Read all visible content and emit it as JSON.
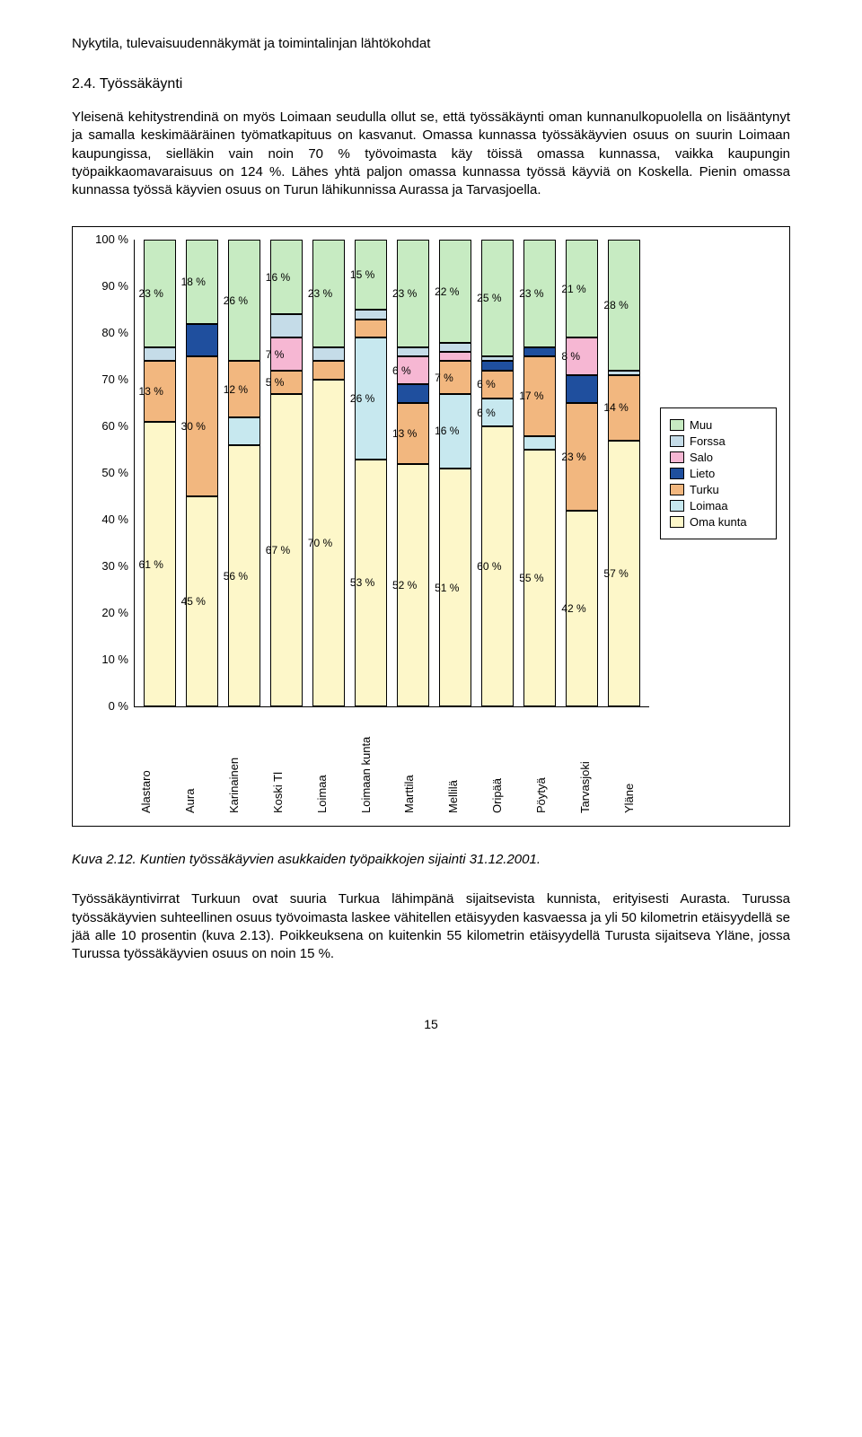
{
  "header": "Nykytila, tulevaisuudennäkymät ja toimintalinjan lähtökohdat",
  "section_number": "2.4. Työssäkäynti",
  "paragraph1": "Yleisenä kehitystrendinä on myös Loimaan seudulla ollut se, että työssäkäynti oman kunnanulkopuolella on lisääntynyt ja samalla keskimääräinen työmatkapituus on kasvanut. Omassa kunnassa työssäkäyvien osuus on suurin Loimaan kaupungissa, sielläkin vain noin 70 % työvoimasta käy töissä omassa kunnassa, vaikka kaupungin työpaikkaomavaraisuus on 124 %. Lähes yhtä paljon omassa kunnassa työssä käyviä on Koskella. Pienin omassa kunnassa työssä käyvien osuus on Turun lähikunnissa Aurassa ja Tarvasjoella.",
  "caption": "Kuva 2.12.  Kuntien työssäkäyvien asukkaiden työpaikkojen sijainti 31.12.2001.",
  "paragraph2": "Työssäkäyntivirrat Turkuun ovat suuria Turkua lähimpänä sijaitsevista kunnista, erityisesti Aurasta. Turussa työssäkäyvien suhteellinen osuus työvoimasta laskee vähitellen etäisyyden kasvaessa ja yli 50 kilometrin etäisyydellä se jää alle 10 prosentin (kuva 2.13). Poikkeuksena on kuitenkin 55 kilometrin etäisyydellä Turusta sijaitseva Yläne, jossa Turussa työssäkäyvien osuus on noin 15 %.",
  "page_number": "15",
  "chart": {
    "type": "stacked-bar",
    "ylim": [
      0,
      100
    ],
    "ytick_step": 10,
    "y_ticks": [
      "0 %",
      "10 %",
      "20 %",
      "30 %",
      "40 %",
      "50 %",
      "60 %",
      "70 %",
      "80 %",
      "90 %",
      "100 %"
    ],
    "legend": [
      {
        "key": "muu",
        "label": "Muu",
        "color": "#c7ebc2"
      },
      {
        "key": "forssa",
        "label": "Forssa",
        "color": "#c5dce8"
      },
      {
        "key": "salo",
        "label": "Salo",
        "color": "#f6b7d3"
      },
      {
        "key": "lieto",
        "label": "Lieto",
        "color": "#1f4f9e"
      },
      {
        "key": "turku",
        "label": "Turku",
        "color": "#f2b77f"
      },
      {
        "key": "loimaa",
        "label": "Loimaa",
        "color": "#c7e8ef"
      },
      {
        "key": "oma",
        "label": "Oma kunta",
        "color": "#fdf7c9"
      }
    ],
    "categories": [
      "Alastaro",
      "Aura",
      "Karinainen",
      "Koski Tl",
      "Loimaa",
      "Loimaan kunta",
      "Marttila",
      "Mellilä",
      "Oripää",
      "Pöytyä",
      "Tarvasjoki",
      "Yläne"
    ],
    "series": [
      {
        "name": "Alastaro",
        "stack": [
          {
            "key": "oma",
            "value": 61,
            "label": "61 %"
          },
          {
            "key": "loimaa",
            "value": 0
          },
          {
            "key": "turku",
            "value": 13,
            "label": "13 %"
          },
          {
            "key": "lieto",
            "value": 0
          },
          {
            "key": "salo",
            "value": 0
          },
          {
            "key": "forssa",
            "value": 3
          },
          {
            "key": "muu",
            "value": 23,
            "label": "23 %"
          }
        ]
      },
      {
        "name": "Aura",
        "stack": [
          {
            "key": "oma",
            "value": 45,
            "label": "45 %"
          },
          {
            "key": "loimaa",
            "value": 0
          },
          {
            "key": "turku",
            "value": 30,
            "label": "30 %"
          },
          {
            "key": "lieto",
            "value": 7
          },
          {
            "key": "salo",
            "value": 0
          },
          {
            "key": "forssa",
            "value": 0
          },
          {
            "key": "muu",
            "value": 18,
            "label": "18 %"
          }
        ]
      },
      {
        "name": "Karinainen",
        "stack": [
          {
            "key": "oma",
            "value": 56,
            "label": "56 %"
          },
          {
            "key": "loimaa",
            "value": 6
          },
          {
            "key": "turku",
            "value": 12,
            "label": "12 %"
          },
          {
            "key": "lieto",
            "value": 0
          },
          {
            "key": "salo",
            "value": 0
          },
          {
            "key": "forssa",
            "value": 0
          },
          {
            "key": "muu",
            "value": 26,
            "label": "26 %"
          }
        ]
      },
      {
        "name": "Koski Tl",
        "stack": [
          {
            "key": "oma",
            "value": 67,
            "label": "67 %"
          },
          {
            "key": "loimaa",
            "value": 0
          },
          {
            "key": "turku",
            "value": 5,
            "label": "5 %"
          },
          {
            "key": "lieto",
            "value": 0
          },
          {
            "key": "salo",
            "value": 7,
            "label": "7 %"
          },
          {
            "key": "forssa",
            "value": 5
          },
          {
            "key": "muu",
            "value": 16,
            "label": "16 %"
          }
        ]
      },
      {
        "name": "Loimaa",
        "stack": [
          {
            "key": "oma",
            "value": 70,
            "label": "70 %"
          },
          {
            "key": "loimaa",
            "value": 0
          },
          {
            "key": "turku",
            "value": 4
          },
          {
            "key": "lieto",
            "value": 0
          },
          {
            "key": "salo",
            "value": 0
          },
          {
            "key": "forssa",
            "value": 3
          },
          {
            "key": "muu",
            "value": 23,
            "label": "23 %"
          }
        ]
      },
      {
        "name": "Loimaan kunta",
        "stack": [
          {
            "key": "oma",
            "value": 53,
            "label": "53 %"
          },
          {
            "key": "loimaa",
            "value": 26,
            "label": "26 %"
          },
          {
            "key": "turku",
            "value": 4
          },
          {
            "key": "lieto",
            "value": 0
          },
          {
            "key": "salo",
            "value": 0
          },
          {
            "key": "forssa",
            "value": 2
          },
          {
            "key": "muu",
            "value": 15,
            "label": "15 %"
          }
        ]
      },
      {
        "name": "Marttila",
        "stack": [
          {
            "key": "oma",
            "value": 52,
            "label": "52 %"
          },
          {
            "key": "loimaa",
            "value": 0
          },
          {
            "key": "turku",
            "value": 13,
            "label": "13 %"
          },
          {
            "key": "lieto",
            "value": 4
          },
          {
            "key": "salo",
            "value": 6,
            "label": "6 %"
          },
          {
            "key": "forssa",
            "value": 2
          },
          {
            "key": "muu",
            "value": 23,
            "label": "23 %"
          }
        ]
      },
      {
        "name": "Mellilä",
        "stack": [
          {
            "key": "oma",
            "value": 51,
            "label": "51 %"
          },
          {
            "key": "loimaa",
            "value": 16,
            "label": "16 %"
          },
          {
            "key": "turku",
            "value": 7,
            "label": "7 %"
          },
          {
            "key": "lieto",
            "value": 0
          },
          {
            "key": "salo",
            "value": 2
          },
          {
            "key": "forssa",
            "value": 2
          },
          {
            "key": "muu",
            "value": 22,
            "label": "22 %"
          }
        ]
      },
      {
        "name": "Oripää",
        "stack": [
          {
            "key": "oma",
            "value": 60,
            "label": "60 %"
          },
          {
            "key": "loimaa",
            "value": 6,
            "label": "6 %"
          },
          {
            "key": "turku",
            "value": 6,
            "label": "6 %"
          },
          {
            "key": "lieto",
            "value": 2
          },
          {
            "key": "salo",
            "value": 0
          },
          {
            "key": "forssa",
            "value": 1
          },
          {
            "key": "muu",
            "value": 25,
            "label": "25 %"
          }
        ]
      },
      {
        "name": "Pöytyä",
        "stack": [
          {
            "key": "oma",
            "value": 55,
            "label": "55 %"
          },
          {
            "key": "loimaa",
            "value": 3
          },
          {
            "key": "turku",
            "value": 17,
            "label": "17 %"
          },
          {
            "key": "lieto",
            "value": 2
          },
          {
            "key": "salo",
            "value": 0
          },
          {
            "key": "forssa",
            "value": 0
          },
          {
            "key": "muu",
            "value": 23,
            "label": "23 %"
          }
        ]
      },
      {
        "name": "Tarvasjoki",
        "stack": [
          {
            "key": "oma",
            "value": 42,
            "label": "42 %"
          },
          {
            "key": "loimaa",
            "value": 0
          },
          {
            "key": "turku",
            "value": 23,
            "label": "23 %"
          },
          {
            "key": "lieto",
            "value": 6
          },
          {
            "key": "salo",
            "value": 8,
            "label": "8 %"
          },
          {
            "key": "forssa",
            "value": 0
          },
          {
            "key": "muu",
            "value": 21,
            "label": "21 %"
          }
        ]
      },
      {
        "name": "Yläne",
        "stack": [
          {
            "key": "oma",
            "value": 57,
            "label": "57 %"
          },
          {
            "key": "loimaa",
            "value": 0
          },
          {
            "key": "turku",
            "value": 14,
            "label": "14 %"
          },
          {
            "key": "lieto",
            "value": 0
          },
          {
            "key": "salo",
            "value": 0
          },
          {
            "key": "forssa",
            "value": 1
          },
          {
            "key": "muu",
            "value": 28,
            "label": "28 %"
          }
        ]
      }
    ]
  }
}
